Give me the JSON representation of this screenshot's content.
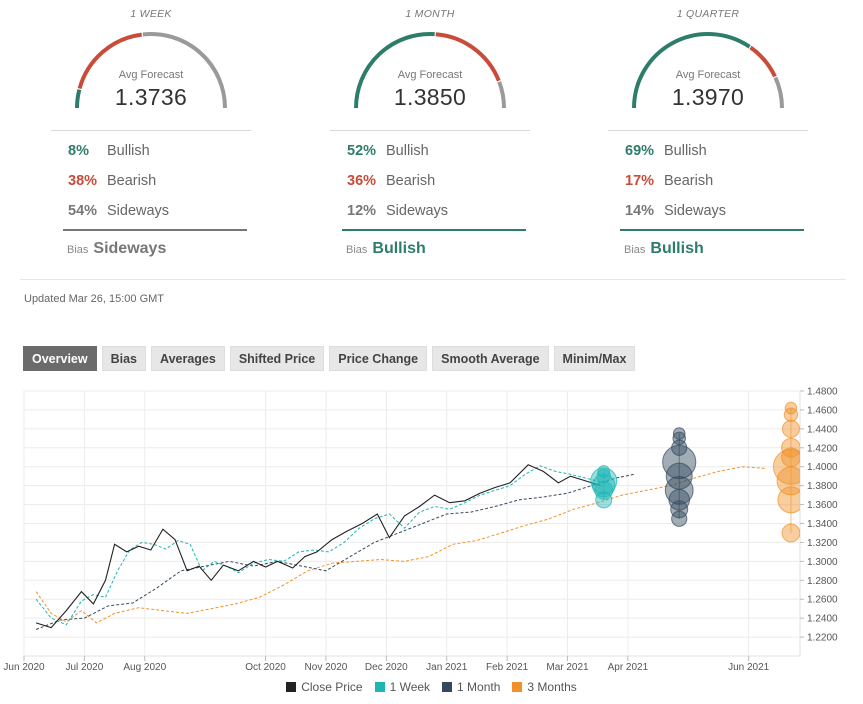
{
  "gauges": [
    {
      "period": "1 WEEK",
      "label": "Avg Forecast",
      "value": "1.3736",
      "bullish_pct": "8%",
      "bearish_pct": "38%",
      "sideways_pct": "54%",
      "bullish_label": "Bullish",
      "bearish_label": "Bearish",
      "sideways_label": "Sideways",
      "bullish": 8,
      "bearish": 38,
      "sideways": 54,
      "bias_label": "Bias",
      "bias": "Sideways",
      "bias_color": "#777777"
    },
    {
      "period": "1 MONTH",
      "label": "Avg Forecast",
      "value": "1.3850",
      "bullish_pct": "52%",
      "bearish_pct": "36%",
      "sideways_pct": "12%",
      "bullish_label": "Bullish",
      "bearish_label": "Bearish",
      "sideways_label": "Sideways",
      "bullish": 52,
      "bearish": 36,
      "sideways": 12,
      "bias_label": "Bias",
      "bias": "Bullish",
      "bias_color": "#2e7d6b"
    },
    {
      "period": "1 QUARTER",
      "label": "Avg Forecast",
      "value": "1.3970",
      "bullish_pct": "69%",
      "bearish_pct": "17%",
      "sideways_pct": "14%",
      "bullish_label": "Bullish",
      "bearish_label": "Bearish",
      "sideways_label": "Sideways",
      "bullish": 69,
      "bearish": 17,
      "sideways": 14,
      "bias_label": "Bias",
      "bias": "Bullish",
      "bias_color": "#2e7d6b"
    }
  ],
  "colors": {
    "bullish": "#2e7d6b",
    "bearish": "#c94b3a",
    "sideways": "#9a9a9a"
  },
  "updated": "Updated Mar 26, 15:00 GMT",
  "tabs": [
    "Overview",
    "Bias",
    "Averages",
    "Shifted Price",
    "Price Change",
    "Smooth Average",
    "Minim/Max"
  ],
  "active_tab": "Overview",
  "chart_data": {
    "type": "line",
    "y_ticks": [
      "1.4800",
      "1.4600",
      "1.4400",
      "1.4200",
      "1.4000",
      "1.3800",
      "1.3600",
      "1.3400",
      "1.3200",
      "1.3000",
      "1.2800",
      "1.2600",
      "1.2400",
      "1.2200"
    ],
    "ylim": [
      1.2,
      1.48
    ],
    "x_ticks": [
      {
        "label": "Jun 2020",
        "t": 0
      },
      {
        "label": "Jul 2020",
        "t": 1
      },
      {
        "label": "Aug 2020",
        "t": 2
      },
      {
        "label": "Oct 2020",
        "t": 4
      },
      {
        "label": "Nov 2020",
        "t": 5
      },
      {
        "label": "Dec 2020",
        "t": 6
      },
      {
        "label": "Jan 2021",
        "t": 7
      },
      {
        "label": "Feb 2021",
        "t": 8
      },
      {
        "label": "Mar 2021",
        "t": 9
      },
      {
        "label": "Apr 2021",
        "t": 10
      },
      {
        "label": "Jun 2021",
        "t": 12
      }
    ],
    "legend": [
      {
        "name": "Close Price",
        "color": "#222222"
      },
      {
        "name": "1 Week",
        "color": "#1fb5b5"
      },
      {
        "name": "1 Month",
        "color": "#34495e"
      },
      {
        "name": "3 Months",
        "color": "#f0922b"
      }
    ],
    "series": [
      {
        "name": "Close Price",
        "color": "#222222",
        "dash": "",
        "points": [
          [
            0.2,
            1.235
          ],
          [
            0.45,
            1.23
          ],
          [
            0.7,
            1.248
          ],
          [
            0.95,
            1.268
          ],
          [
            1.15,
            1.255
          ],
          [
            1.35,
            1.28
          ],
          [
            1.5,
            1.318
          ],
          [
            1.7,
            1.31
          ],
          [
            1.9,
            1.316
          ],
          [
            2.1,
            1.312
          ],
          [
            2.3,
            1.334
          ],
          [
            2.5,
            1.323
          ],
          [
            2.7,
            1.29
          ],
          [
            2.9,
            1.295
          ],
          [
            3.1,
            1.28
          ],
          [
            3.3,
            1.296
          ],
          [
            3.55,
            1.29
          ],
          [
            3.8,
            1.3
          ],
          [
            4.0,
            1.294
          ],
          [
            4.2,
            1.3
          ],
          [
            4.45,
            1.293
          ],
          [
            4.65,
            1.305
          ],
          [
            4.85,
            1.31
          ],
          [
            5.1,
            1.323
          ],
          [
            5.35,
            1.332
          ],
          [
            5.6,
            1.34
          ],
          [
            5.85,
            1.35
          ],
          [
            6.05,
            1.325
          ],
          [
            6.3,
            1.348
          ],
          [
            6.55,
            1.358
          ],
          [
            6.8,
            1.37
          ],
          [
            7.05,
            1.362
          ],
          [
            7.3,
            1.364
          ],
          [
            7.55,
            1.372
          ],
          [
            7.8,
            1.378
          ],
          [
            8.05,
            1.383
          ],
          [
            8.35,
            1.402
          ],
          [
            8.6,
            1.395
          ],
          [
            8.85,
            1.383
          ],
          [
            9.05,
            1.39
          ],
          [
            9.3,
            1.385
          ],
          [
            9.55,
            1.38
          ]
        ]
      },
      {
        "name": "1 Week",
        "color": "#1fb5b5",
        "dash": "3,2",
        "points": [
          [
            0.2,
            1.26
          ],
          [
            0.45,
            1.24
          ],
          [
            0.7,
            1.233
          ],
          [
            0.95,
            1.258
          ],
          [
            1.15,
            1.265
          ],
          [
            1.35,
            1.262
          ],
          [
            1.55,
            1.29
          ],
          [
            1.75,
            1.312
          ],
          [
            1.95,
            1.32
          ],
          [
            2.15,
            1.318
          ],
          [
            2.35,
            1.313
          ],
          [
            2.55,
            1.322
          ],
          [
            2.75,
            1.318
          ],
          [
            2.95,
            1.29
          ],
          [
            3.15,
            1.3
          ],
          [
            3.35,
            1.295
          ],
          [
            3.55,
            1.288
          ],
          [
            3.8,
            1.298
          ],
          [
            4.05,
            1.302
          ],
          [
            4.3,
            1.3
          ],
          [
            4.55,
            1.31
          ],
          [
            4.8,
            1.312
          ],
          [
            5.05,
            1.31
          ],
          [
            5.3,
            1.32
          ],
          [
            5.55,
            1.335
          ],
          [
            5.8,
            1.345
          ],
          [
            6.05,
            1.35
          ],
          [
            6.3,
            1.335
          ],
          [
            6.55,
            1.352
          ],
          [
            6.8,
            1.358
          ],
          [
            7.05,
            1.355
          ],
          [
            7.3,
            1.362
          ],
          [
            7.55,
            1.37
          ],
          [
            7.8,
            1.375
          ],
          [
            8.05,
            1.38
          ],
          [
            8.3,
            1.392
          ],
          [
            8.55,
            1.401
          ],
          [
            8.8,
            1.395
          ],
          [
            9.05,
            1.392
          ],
          [
            9.3,
            1.388
          ],
          [
            9.55,
            1.384
          ]
        ]
      },
      {
        "name": "1 Month",
        "color": "#34495e",
        "dash": "3,2",
        "points": [
          [
            0.2,
            1.228
          ],
          [
            0.6,
            1.238
          ],
          [
            1.0,
            1.24
          ],
          [
            1.4,
            1.253
          ],
          [
            1.8,
            1.256
          ],
          [
            2.2,
            1.272
          ],
          [
            2.6,
            1.29
          ],
          [
            3.0,
            1.295
          ],
          [
            3.4,
            1.3
          ],
          [
            3.8,
            1.295
          ],
          [
            4.2,
            1.3
          ],
          [
            4.6,
            1.295
          ],
          [
            5.0,
            1.29
          ],
          [
            5.4,
            1.305
          ],
          [
            5.8,
            1.32
          ],
          [
            6.2,
            1.33
          ],
          [
            6.6,
            1.34
          ],
          [
            7.0,
            1.35
          ],
          [
            7.4,
            1.352
          ],
          [
            7.8,
            1.358
          ],
          [
            8.2,
            1.365
          ],
          [
            8.6,
            1.368
          ],
          [
            9.0,
            1.372
          ],
          [
            9.4,
            1.38
          ],
          [
            9.8,
            1.388
          ],
          [
            10.1,
            1.392
          ]
        ]
      },
      {
        "name": "3 Months",
        "color": "#f0922b",
        "dash": "3,2",
        "points": [
          [
            0.2,
            1.268
          ],
          [
            0.45,
            1.245
          ],
          [
            0.7,
            1.236
          ],
          [
            0.95,
            1.248
          ],
          [
            1.2,
            1.235
          ],
          [
            1.5,
            1.245
          ],
          [
            1.9,
            1.251
          ],
          [
            2.3,
            1.248
          ],
          [
            2.7,
            1.245
          ],
          [
            3.1,
            1.25
          ],
          [
            3.5,
            1.255
          ],
          [
            3.9,
            1.262
          ],
          [
            4.3,
            1.275
          ],
          [
            4.7,
            1.29
          ],
          [
            5.1,
            1.298
          ],
          [
            5.5,
            1.3
          ],
          [
            5.9,
            1.302
          ],
          [
            6.3,
            1.3
          ],
          [
            6.7,
            1.305
          ],
          [
            7.1,
            1.318
          ],
          [
            7.5,
            1.322
          ],
          [
            7.9,
            1.33
          ],
          [
            8.3,
            1.338
          ],
          [
            8.7,
            1.345
          ],
          [
            9.1,
            1.355
          ],
          [
            9.5,
            1.362
          ],
          [
            9.9,
            1.37
          ],
          [
            10.3,
            1.375
          ],
          [
            10.7,
            1.38
          ],
          [
            11.1,
            1.388
          ],
          [
            11.5,
            1.395
          ],
          [
            11.9,
            1.4
          ],
          [
            12.3,
            1.398
          ]
        ]
      }
    ],
    "forecasts": [
      {
        "name": "1 Week",
        "color": "#1fb5b5",
        "t": 9.6,
        "bubbles": [
          [
            1.385,
            1.0
          ],
          [
            1.38,
            0.8
          ],
          [
            1.375,
            0.55
          ],
          [
            1.365,
            0.45
          ],
          [
            1.39,
            0.3
          ],
          [
            1.395,
            0.2
          ]
        ]
      },
      {
        "name": "1 Month",
        "color": "#34495e",
        "t": 10.85,
        "bubbles": [
          [
            1.405,
            1.4
          ],
          [
            1.39,
            1.0
          ],
          [
            1.375,
            1.1
          ],
          [
            1.365,
            0.7
          ],
          [
            1.355,
            0.5
          ],
          [
            1.345,
            0.4
          ],
          [
            1.42,
            0.4
          ],
          [
            1.43,
            0.25
          ],
          [
            1.435,
            0.2
          ]
        ]
      },
      {
        "name": "3 Months",
        "color": "#f0922b",
        "t": 12.7,
        "bubbles": [
          [
            1.4,
            1.5
          ],
          [
            1.385,
            1.1
          ],
          [
            1.365,
            1.0
          ],
          [
            1.42,
            0.6
          ],
          [
            1.44,
            0.5
          ],
          [
            1.455,
            0.3
          ],
          [
            1.462,
            0.2
          ],
          [
            1.33,
            0.55
          ],
          [
            1.41,
            0.6
          ]
        ]
      }
    ]
  }
}
